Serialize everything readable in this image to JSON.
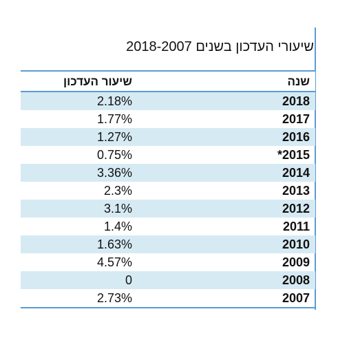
{
  "title": "שיעורי העדכון בשנים 2018-2007",
  "table": {
    "headers": {
      "year": "שנה",
      "rate": "שיעור העדכון"
    },
    "rows": [
      {
        "year": "2018",
        "rate": "2.18%"
      },
      {
        "year": "2017",
        "rate": "1.77%"
      },
      {
        "year": "2016",
        "rate": "1.27%"
      },
      {
        "year": "2015*",
        "rate": "0.75%"
      },
      {
        "year": "2014",
        "rate": "3.36%"
      },
      {
        "year": "2013",
        "rate": "2.3%"
      },
      {
        "year": "2012",
        "rate": "3.1%"
      },
      {
        "year": "2011",
        "rate": "1.4%"
      },
      {
        "year": "2010",
        "rate": "1.63%"
      },
      {
        "year": "2009",
        "rate": "4.57%"
      },
      {
        "year": "2008",
        "rate": "0"
      },
      {
        "year": "2007",
        "rate": "2.73%"
      }
    ]
  },
  "colors": {
    "accent": "#5b9bd5",
    "stripe": "#d6eaf3"
  }
}
